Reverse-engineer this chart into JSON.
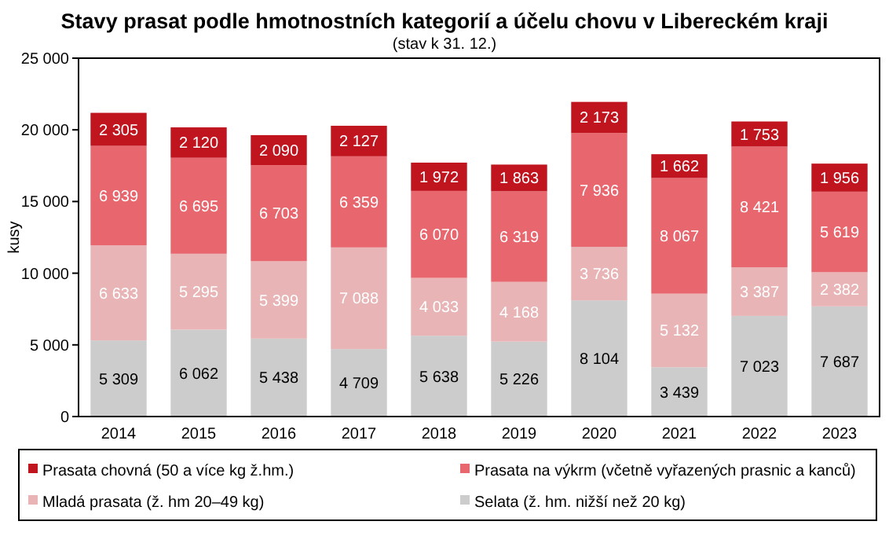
{
  "chart_data": {
    "type": "bar",
    "stacked": true,
    "title": "Stavy prasat podle hmotnostních kategorií a účelu chovu v Libereckém kraji",
    "subtitle": "(stav k 31. 12.)",
    "ylabel": "kusy",
    "categories": [
      "2014",
      "2015",
      "2016",
      "2017",
      "2018",
      "2019",
      "2020",
      "2021",
      "2022",
      "2023"
    ],
    "ylim": [
      0,
      25000
    ],
    "yticks": [
      {
        "value": 0,
        "label": "0"
      },
      {
        "value": 5000,
        "label": "5 000"
      },
      {
        "value": 10000,
        "label": "10 000"
      },
      {
        "value": 15000,
        "label": "15 000"
      },
      {
        "value": 20000,
        "label": "20 000"
      },
      {
        "value": 25000,
        "label": "25 000"
      }
    ],
    "grid": false,
    "legend": "bottom",
    "series": [
      {
        "name": "Selata (ž. hm. nižší než 20 kg)",
        "color": "#cccccc",
        "values": [
          5309,
          6062,
          5438,
          4709,
          5638,
          5226,
          8104,
          3439,
          7023,
          7687
        ],
        "value_labels": [
          "5 309",
          "6 062",
          "5 438",
          "4 709",
          "5 638",
          "5 226",
          "8 104",
          "3 439",
          "7 023",
          "7 687"
        ]
      },
      {
        "name": "Mladá prasata (ž. hm 20–49 kg)",
        "color": "#e8b4b6",
        "values": [
          6633,
          5295,
          5399,
          7088,
          4033,
          4168,
          3736,
          5132,
          3387,
          2382
        ],
        "value_labels": [
          "6 633",
          "5 295",
          "5 399",
          "7 088",
          "4 033",
          "4 168",
          "3 736",
          "5 132",
          "3 387",
          "2 382"
        ]
      },
      {
        "name": "Prasata na výkrm (včetně vyřazených prasnic a kanců)",
        "color": "#e8676e",
        "values": [
          6939,
          6695,
          6703,
          6359,
          6070,
          6319,
          7936,
          8067,
          8421,
          5619
        ],
        "value_labels": [
          "6 939",
          "6 695",
          "6 703",
          "6 359",
          "6 070",
          "6 319",
          "7 936",
          "8 067",
          "8 421",
          "5 619"
        ]
      },
      {
        "name": "Prasata chovná (50 a více kg ž.hm.)",
        "color": "#c0141f",
        "values": [
          2305,
          2120,
          2090,
          2127,
          1972,
          1863,
          2173,
          1662,
          1753,
          1956
        ],
        "value_labels": [
          "2 305",
          "2 120",
          "2 090",
          "2 127",
          "1 972",
          "1 863",
          "2 173",
          "1 662",
          "1 753",
          "1 956"
        ]
      }
    ]
  }
}
